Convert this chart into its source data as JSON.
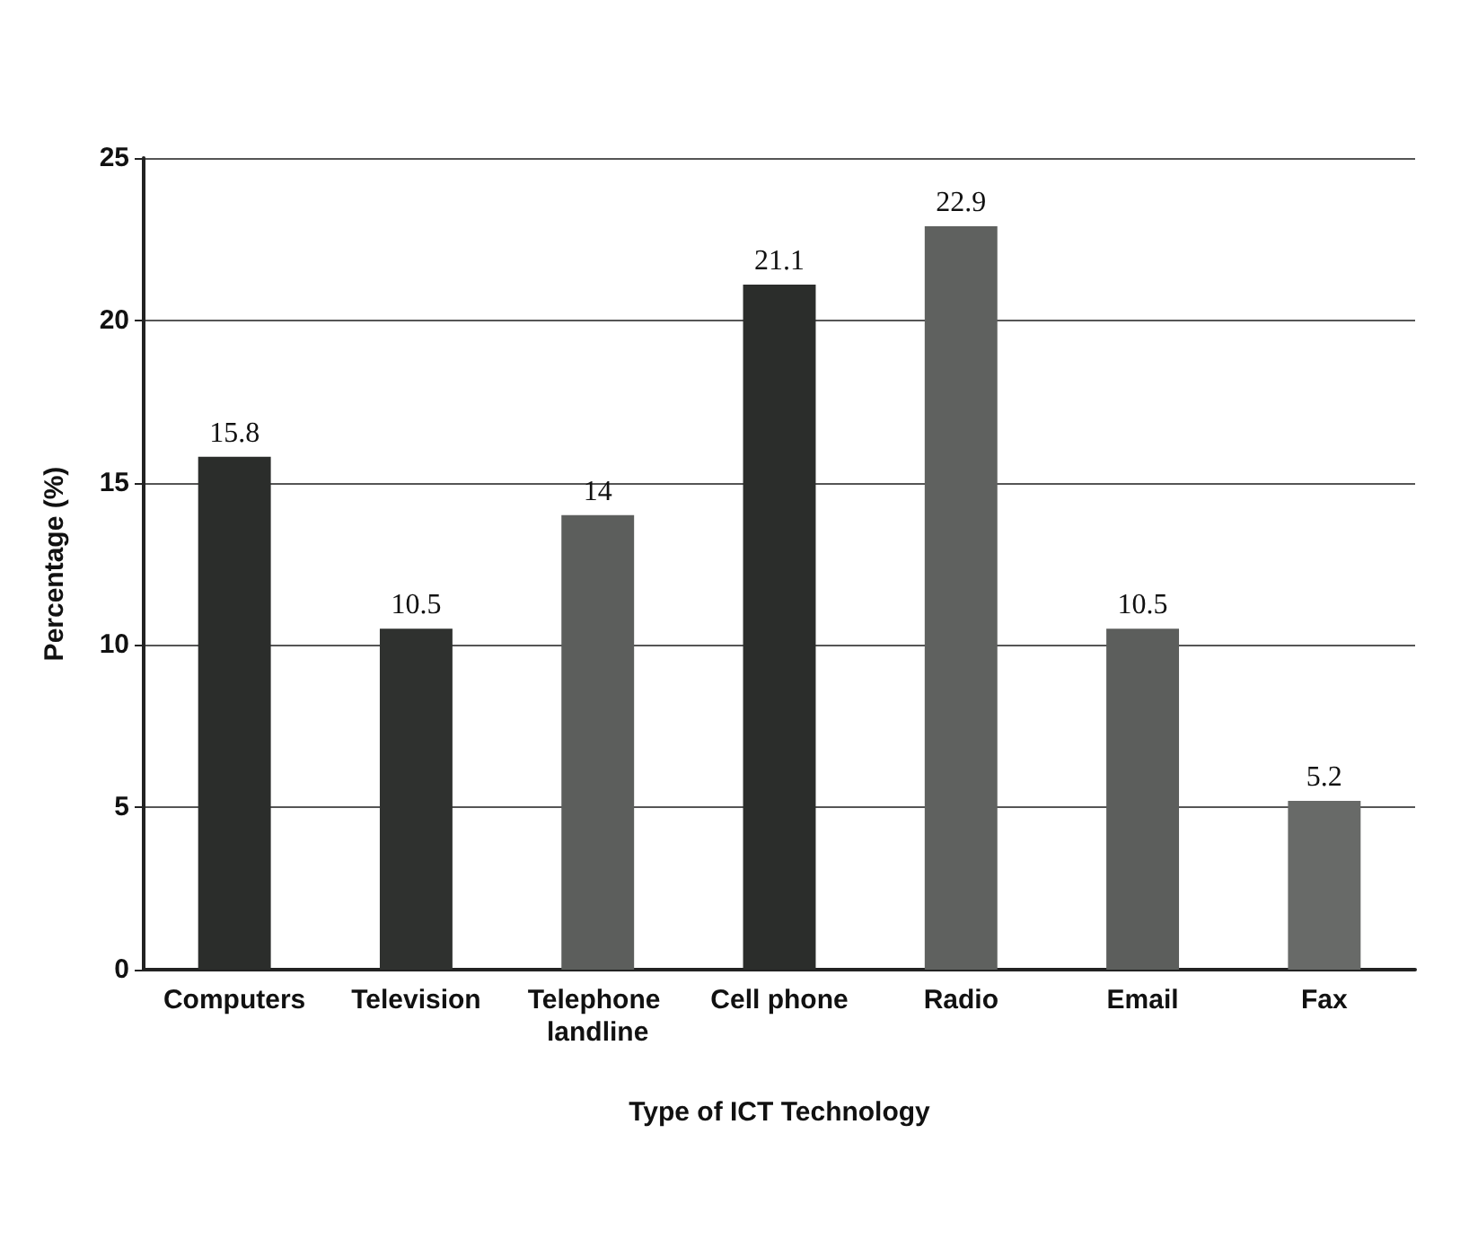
{
  "chart_data": {
    "type": "bar",
    "xlabel": "Type of ICT Technology",
    "ylabel": "Percentage (%)",
    "categories": [
      "Computers",
      "Television",
      "Telephone landline",
      "Cell phone",
      "Radio",
      "Email",
      "Fax"
    ],
    "values": [
      15.8,
      10.5,
      14,
      21.1,
      22.9,
      10.5,
      5.2
    ],
    "colors": [
      "#2b2d2b",
      "#2f312f",
      "#5c5e5c",
      "#2b2d2b",
      "#5f615f",
      "#5c5e5c",
      "#686a68"
    ],
    "ylim": [
      0,
      25
    ],
    "yticks": [
      0,
      5,
      10,
      15,
      20,
      25
    ],
    "grid": "y",
    "data_labels": true
  }
}
